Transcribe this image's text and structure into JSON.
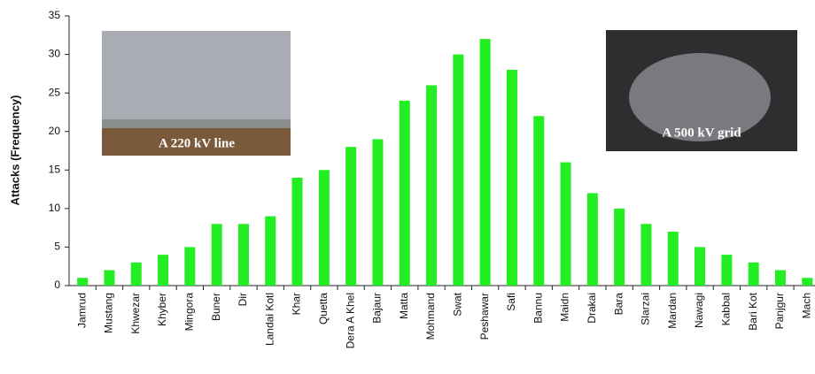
{
  "chart_data": {
    "type": "bar",
    "y_label": "Attacks (Frequency)",
    "categories": [
      "Jamrud",
      "Mustang",
      "Khwezar",
      "Khyber",
      "Mingora",
      "Buner",
      "Dir",
      "Landai Kotl",
      "Khar",
      "Quetta",
      "Dera A Khel",
      "Bajaur",
      "Matta",
      "Mohmand",
      "Swat",
      "Peshawar",
      "Safi",
      "Bannu",
      "Maidn",
      "Drakai",
      "Bara",
      "Slarzai",
      "Mardan",
      "Nawagi",
      "Kabbal",
      "Bari Kot",
      "Panjgur",
      "Mach"
    ],
    "values": [
      1,
      2,
      3,
      4,
      5,
      8,
      8,
      9,
      14,
      15,
      18,
      19,
      24,
      26,
      30,
      32,
      28,
      22,
      16,
      12,
      10,
      8,
      7,
      5,
      4,
      3,
      2,
      1
    ],
    "color": "#22ee22",
    "ylim": [
      0,
      35
    ],
    "yticks": [
      0,
      5,
      10,
      15,
      20,
      25,
      30,
      35
    ],
    "images": [
      {
        "caption": "A 220 kV line"
      },
      {
        "caption": "A 500 kV grid"
      }
    ]
  }
}
